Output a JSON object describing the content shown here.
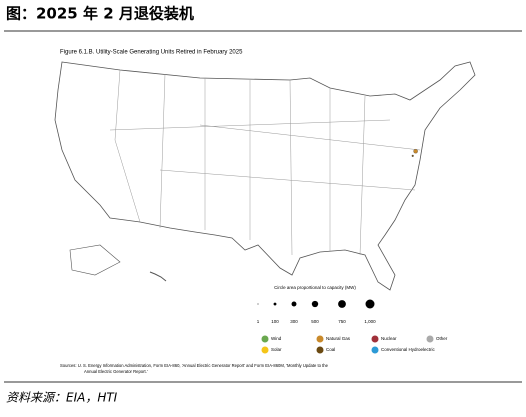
{
  "header": {
    "title": "图：2025 年 2 月退役装机"
  },
  "chart_data": {
    "type": "map",
    "title": "Figure 6.1.B. Utility-Scale Generating Units Retired in February 2025",
    "size_legend": {
      "title": "Circle area proportional to capacity (MW)",
      "values": [
        1,
        100,
        300,
        500,
        750,
        {
          "value": 1000,
          "label": "1,000"
        }
      ]
    },
    "fuels": [
      {
        "name": "Wind",
        "color": "#6aa84f"
      },
      {
        "name": "Natural Gas",
        "color": "#c98a2b"
      },
      {
        "name": "Nuclear",
        "color": "#a0303a"
      },
      {
        "name": "Other",
        "color": "#aaaaaa"
      },
      {
        "name": "Solar",
        "color": "#f5c518"
      },
      {
        "name": "Coal",
        "color": "#6b4a12"
      },
      {
        "name": "Conventional Hydroelectric",
        "color": "#2c9ad6"
      }
    ],
    "points": [
      {
        "fuel": 1,
        "lon": -75.2,
        "lat": 39.4,
        "capacity": 200
      },
      {
        "fuel": 5,
        "lon": -75.6,
        "lat": 38.9,
        "capacity": 40
      }
    ],
    "sources": [
      "Sources:    U. S. Energy Information Administration, Form EIA-860, 'Annual Electric Generator Report' and Form EIA-860M, 'Monthly Update to the",
      "Annual Electric Generator Report.'"
    ]
  },
  "footer": {
    "source": "资料来源：EIA，HTI"
  }
}
